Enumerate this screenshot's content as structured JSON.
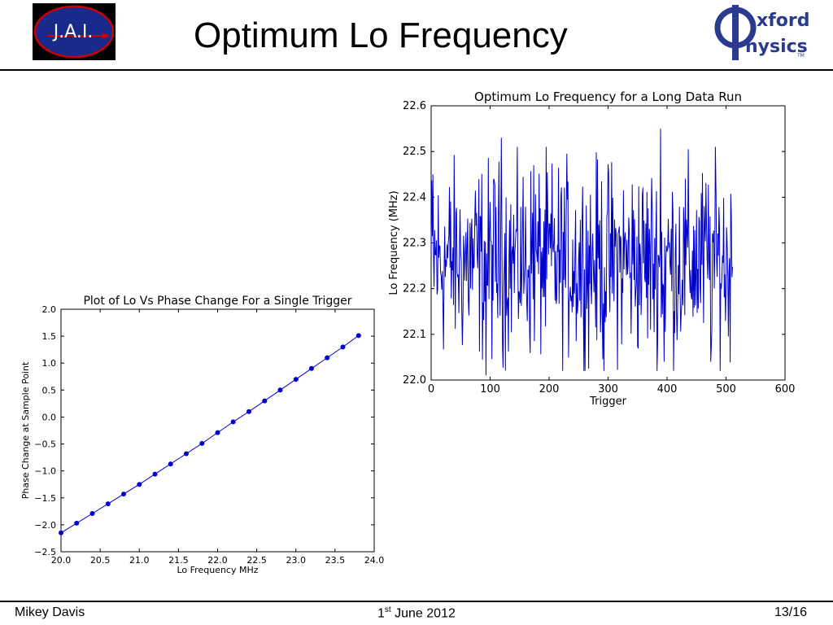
{
  "slide": {
    "title": "Optimum Lo Frequency",
    "footer_author": "Mikey Davis",
    "footer_date_day": "1",
    "footer_date_suffix": "st",
    "footer_date_rest": " June 2012",
    "footer_page": "13/16"
  },
  "logos": {
    "jai_text": "J.A.I.",
    "oxford_word1": "xford",
    "oxford_word2": "hysics",
    "oxford_tm": "TM"
  },
  "colors": {
    "series": "#0000cc",
    "jai_bg": "#000000",
    "jai_ring": "#cc0000",
    "jai_fill": "#1a2a8a",
    "oxford": "#2a3a8f"
  },
  "chart_data": [
    {
      "type": "line",
      "title": "Optimum Lo Frequency for a Long Data Run",
      "xlabel": "Trigger",
      "ylabel": "Lo Frequency (MHz)",
      "xlim": [
        0,
        600
      ],
      "ylim": [
        22.0,
        22.6
      ],
      "xticks": [
        0,
        100,
        200,
        300,
        400,
        500,
        600
      ],
      "yticks": [
        22.0,
        22.1,
        22.2,
        22.3,
        22.4,
        22.5,
        22.6
      ],
      "xtick_labels": [
        "0",
        "100",
        "200",
        "300",
        "400",
        "500",
        "600"
      ],
      "ytick_labels": [
        "22.0",
        "22.1",
        "22.2",
        "22.3",
        "22.4",
        "22.5",
        "22.6"
      ],
      "grid": false,
      "series": [
        {
          "n_points": 512,
          "x_start": 0,
          "x_step": 1,
          "mean": 22.26,
          "stdev": 0.08,
          "range": [
            22.0,
            22.55
          ],
          "approximate_peaks": [
            {
              "x": 3,
              "y": 22.45
            },
            {
              "x": 93,
              "y": 22.01
            },
            {
              "x": 119,
              "y": 22.53
            },
            {
              "x": 174,
              "y": 22.47
            },
            {
              "x": 293,
              "y": 22.02
            },
            {
              "x": 389,
              "y": 22.55
            },
            {
              "x": 395,
              "y": 22.04
            },
            {
              "x": 474,
              "y": 22.04
            },
            {
              "x": 503,
              "y": 22.22
            }
          ]
        }
      ]
    },
    {
      "type": "line",
      "title": "Plot of Lo Vs Phase Change For a Single Trigger",
      "xlabel": "Lo Frequency MHz",
      "ylabel": "Phase Change at Sample Point",
      "xlim": [
        20.0,
        24.0
      ],
      "ylim": [
        -2.5,
        2.0
      ],
      "xticks": [
        20.0,
        20.5,
        21.0,
        21.5,
        22.0,
        22.5,
        23.0,
        23.5,
        24.0
      ],
      "yticks": [
        -2.5,
        -2.0,
        -1.5,
        -1.0,
        -0.5,
        0.0,
        0.5,
        1.0,
        1.5,
        2.0
      ],
      "xtick_labels": [
        "20.0",
        "20.5",
        "21.0",
        "21.5",
        "22.0",
        "22.5",
        "23.0",
        "23.5",
        "24.0"
      ],
      "ytick_labels": [
        "−2.5",
        "−2.0",
        "−1.5",
        "−1.0",
        "−0.5",
        "0.0",
        "0.5",
        "1.0",
        "1.5",
        "2.0"
      ],
      "grid": false,
      "x": [
        20.0,
        20.2,
        20.4,
        20.6,
        20.8,
        21.0,
        21.2,
        21.4,
        21.6,
        21.8,
        22.0,
        22.2,
        22.4,
        22.6,
        22.8,
        23.0,
        23.2,
        23.4,
        23.6,
        23.8
      ],
      "series": [
        {
          "values": [
            -2.15,
            -1.97,
            -1.79,
            -1.61,
            -1.43,
            -1.25,
            -1.06,
            -0.87,
            -0.68,
            -0.49,
            -0.29,
            -0.09,
            0.1,
            0.3,
            0.5,
            0.7,
            0.9,
            1.1,
            1.3,
            1.51
          ],
          "markers": true
        }
      ]
    }
  ]
}
